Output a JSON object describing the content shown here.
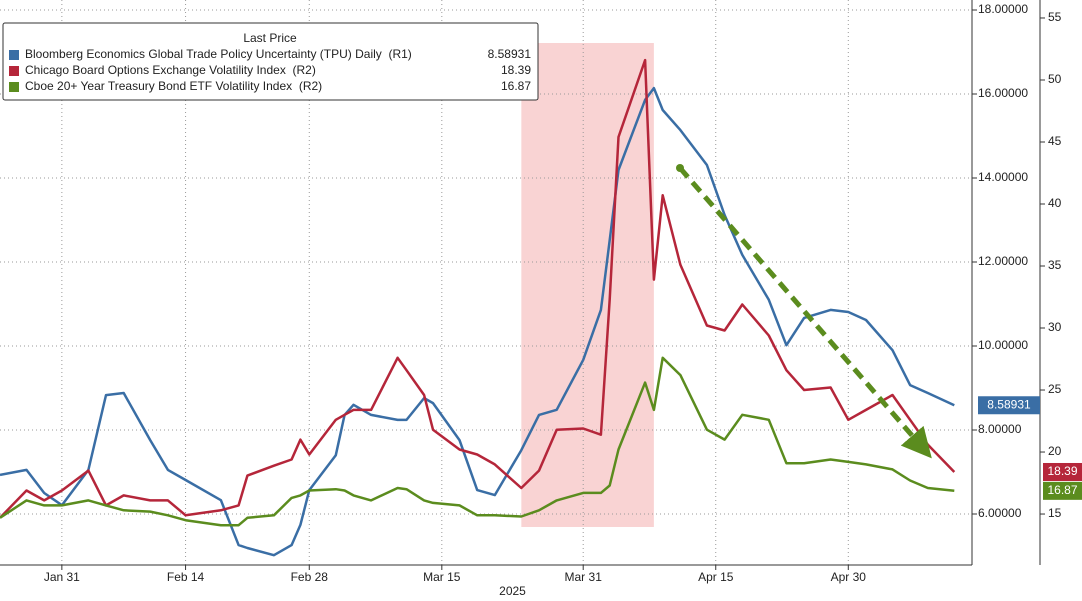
{
  "chart_data": {
    "type": "line",
    "legend_title": "Last Price",
    "xlabel": "2025",
    "x": [
      "2025-01-24",
      "2025-01-27",
      "2025-01-29",
      "2025-01-31",
      "2025-02-03",
      "2025-02-05",
      "2025-02-07",
      "2025-02-10",
      "2025-02-12",
      "2025-02-14",
      "2025-02-18",
      "2025-02-20",
      "2025-02-21",
      "2025-02-24",
      "2025-02-26",
      "2025-02-27",
      "2025-02-28",
      "2025-03-03",
      "2025-03-04",
      "2025-03-05",
      "2025-03-07",
      "2025-03-10",
      "2025-03-11",
      "2025-03-13",
      "2025-03-14",
      "2025-03-17",
      "2025-03-19",
      "2025-03-21",
      "2025-03-24",
      "2025-03-26",
      "2025-03-28",
      "2025-03-31",
      "2025-04-02",
      "2025-04-03",
      "2025-04-04",
      "2025-04-07",
      "2025-04-08",
      "2025-04-09",
      "2025-04-11",
      "2025-04-14",
      "2025-04-16",
      "2025-04-18",
      "2025-04-21",
      "2025-04-23",
      "2025-04-25",
      "2025-04-28",
      "2025-04-30",
      "2025-05-02",
      "2025-05-05",
      "2025-05-07",
      "2025-05-09",
      "2025-05-12"
    ],
    "series": [
      {
        "name": "Bloomberg Economics Global Trade Policy Uncertainty (TPU) Daily  (R1)",
        "color": "#3a6ea5",
        "axis": "y",
        "last_label": "8.58931",
        "values": [
          6.93,
          7.05,
          6.5,
          6.21,
          7.05,
          8.83,
          8.88,
          7.76,
          7.05,
          6.81,
          6.33,
          5.26,
          5.19,
          5.02,
          5.26,
          5.74,
          6.57,
          7.4,
          8.36,
          8.6,
          8.36,
          8.24,
          8.24,
          8.76,
          8.64,
          7.76,
          6.57,
          6.45,
          7.52,
          8.36,
          8.48,
          9.67,
          10.86,
          12.52,
          14.19,
          15.86,
          16.14,
          15.62,
          15.14,
          14.31,
          13.12,
          12.17,
          11.1,
          10.02,
          10.67,
          10.86,
          10.81,
          10.62,
          9.9,
          9.07,
          8.88,
          8.58931
        ]
      },
      {
        "name": "Chicago Board Options Exchange Volatility Index  (R2)",
        "color": "#b5263a",
        "axis": "y2",
        "last_label": "18.39",
        "values": [
          14.7,
          16.9,
          16.1,
          16.9,
          18.5,
          15.7,
          16.5,
          16.1,
          16.1,
          14.9,
          15.3,
          15.7,
          18.1,
          18.9,
          19.4,
          21.0,
          19.8,
          22.6,
          23.0,
          23.4,
          23.4,
          27.6,
          26.6,
          24.6,
          21.8,
          20.2,
          19.8,
          19.0,
          17.1,
          18.5,
          21.8,
          21.9,
          21.4,
          32.3,
          45.4,
          51.6,
          33.9,
          40.7,
          35.1,
          30.2,
          29.8,
          31.9,
          29.4,
          26.6,
          25.0,
          25.2,
          22.6,
          23.4,
          24.6,
          22.6,
          20.6,
          18.39
        ]
      },
      {
        "name": "Cboe 20+ Year Treasury Bond ETF Volatility Index  (R2)",
        "color": "#5b8c1e",
        "axis": "y2",
        "last_label": "16.87",
        "values": [
          14.7,
          16.1,
          15.7,
          15.7,
          16.1,
          15.7,
          15.3,
          15.2,
          14.9,
          14.5,
          14.1,
          14.1,
          14.7,
          14.9,
          16.3,
          16.5,
          16.9,
          17.0,
          16.9,
          16.5,
          16.1,
          17.1,
          17.0,
          16.1,
          15.9,
          15.7,
          14.9,
          14.9,
          14.8,
          15.3,
          16.1,
          16.7,
          16.7,
          17.3,
          20.2,
          25.6,
          23.4,
          27.6,
          26.2,
          21.8,
          21.0,
          23.0,
          22.6,
          19.1,
          19.1,
          19.4,
          19.2,
          19.0,
          18.6,
          17.7,
          17.1,
          16.87
        ]
      }
    ],
    "xlim": [
      "2025-01-24",
      "2025-05-14"
    ],
    "xticks": [
      {
        "value": "2025-01-31",
        "label": "Jan 31"
      },
      {
        "value": "2025-02-14",
        "label": "Feb 14"
      },
      {
        "value": "2025-02-28",
        "label": "Feb 28"
      },
      {
        "value": "2025-03-15",
        "label": "Mar 15"
      },
      {
        "value": "2025-03-31",
        "label": "Mar 31"
      },
      {
        "value": "2025-04-15",
        "label": "Apr 15"
      },
      {
        "value": "2025-04-30",
        "label": "Apr 30"
      }
    ],
    "ylim": [
      4.786,
      18.238
    ],
    "yticks": [
      {
        "value": 6,
        "label": "6.00000"
      },
      {
        "value": 8,
        "label": "8.00000"
      },
      {
        "value": 10,
        "label": "10.00000"
      },
      {
        "value": 12,
        "label": "12.00000"
      },
      {
        "value": 14,
        "label": "14.00000"
      },
      {
        "value": 16,
        "label": "16.00000"
      },
      {
        "value": 18,
        "label": "18.00000"
      }
    ],
    "y2lim": [
      10.89,
      56.45
    ],
    "y2ticks": [
      15,
      20,
      25,
      30,
      35,
      40,
      45,
      50,
      55
    ],
    "highlight": {
      "start": "2025-03-24",
      "end": "2025-04-08",
      "color": "#f9d3d3"
    },
    "grid": true
  }
}
